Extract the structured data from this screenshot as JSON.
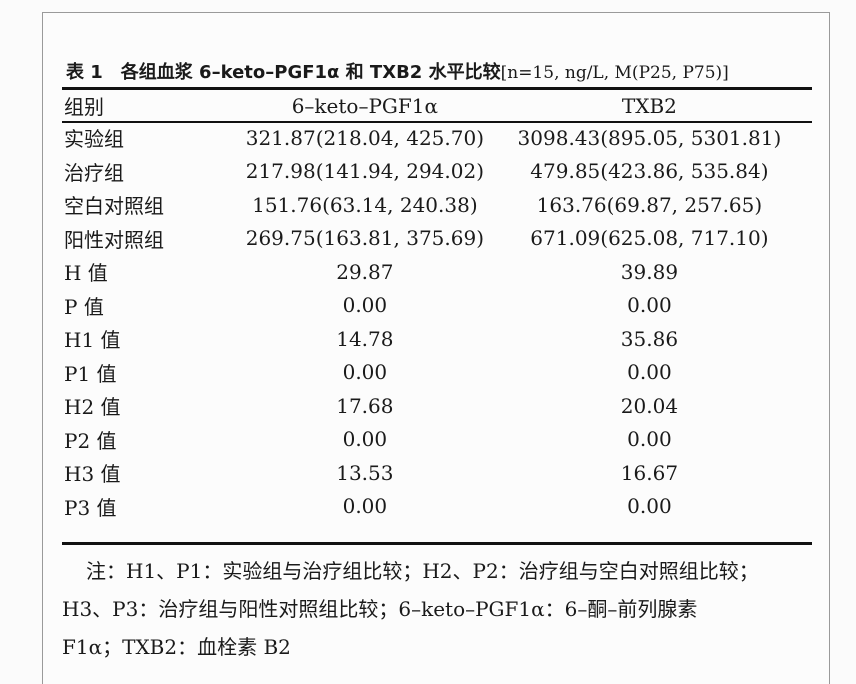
{
  "table": {
    "caption_main": "表 1　各组血浆 6–keto–PGF1α 和 TXB2 水平比较",
    "caption_sub": "[n=15, ng/L, M(P25, P75)]",
    "headers": [
      "组别",
      "6–keto–PGF1α",
      "TXB2"
    ],
    "rows": [
      [
        "实验组",
        "321.87(218.04, 425.70)",
        "3098.43(895.05, 5301.81)"
      ],
      [
        "治疗组",
        "217.98(141.94, 294.02)",
        "479.85(423.86, 535.84)"
      ],
      [
        "空白对照组",
        "151.76(63.14, 240.38)",
        "163.76(69.87, 257.65)"
      ],
      [
        "阳性对照组",
        "269.75(163.81, 375.69)",
        "671.09(625.08, 717.10)"
      ],
      [
        "H 值",
        "29.87",
        "39.89"
      ],
      [
        "P 值",
        "0.00",
        "0.00"
      ],
      [
        "H1 值",
        "14.78",
        "35.86"
      ],
      [
        "P1 值",
        "0.00",
        "0.00"
      ],
      [
        "H2 值",
        "17.68",
        "20.04"
      ],
      [
        "P2 值",
        "0.00",
        "0.00"
      ],
      [
        "H3 值",
        "13.53",
        "16.67"
      ],
      [
        "P3 值",
        "0.00",
        "0.00"
      ]
    ]
  },
  "note": {
    "line1": "注：H1、P1：实验组与治疗组比较；H2、P2：治疗组与空白对照组比较；",
    "line2": "H3、P3：治疗组与阳性对照组比较；6–keto–PGF1α：6–酮–前列腺素",
    "line3": "F1α；TXB2：血栓素 B2"
  }
}
